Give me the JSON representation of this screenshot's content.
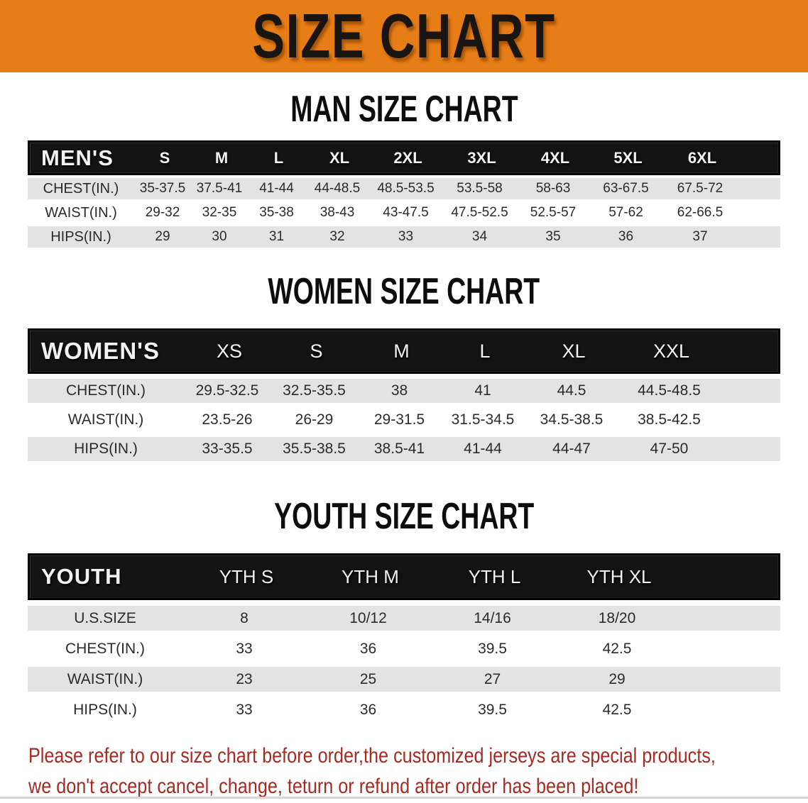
{
  "banner": {
    "title": "SIZE CHART"
  },
  "colors": {
    "banner_bg": "#e67d16",
    "header_bar_bg": "#131313",
    "header_bar_text": "#f2f2f2",
    "row_alt_bg": "#e3e3e3",
    "row_bg": "#ffffff",
    "value_text": "#2b2b2b",
    "footer_text": "#a62a22"
  },
  "men": {
    "heading": "MAN SIZE CHART",
    "label": "MEN'S",
    "sizes": [
      "S",
      "M",
      "L",
      "XL",
      "2XL",
      "3XL",
      "4XL",
      "5XL",
      "6XL"
    ],
    "rows": [
      {
        "label": "CHEST(IN.)",
        "values": [
          "35-37.5",
          "37.5-41",
          "41-44",
          "44-48.5",
          "48.5-53.5",
          "53.5-58",
          "58-63",
          "63-67.5",
          "67.5-72"
        ]
      },
      {
        "label": "WAIST(IN.)",
        "values": [
          "29-32",
          "32-35",
          "35-38",
          "38-43",
          "43-47.5",
          "47.5-52.5",
          "52.5-57",
          "57-62",
          "62-66.5"
        ]
      },
      {
        "label": "HIPS(IN.)",
        "values": [
          "29",
          "30",
          "31",
          "32",
          "33",
          "34",
          "35",
          "36",
          "37"
        ]
      }
    ]
  },
  "women": {
    "heading": "WOMEN SIZE CHART",
    "label": "WOMEN'S",
    "sizes": [
      "XS",
      "S",
      "M",
      "L",
      "XL",
      "XXL"
    ],
    "rows": [
      {
        "label": "CHEST(IN.)",
        "values": [
          "29.5-32.5",
          "32.5-35.5",
          "38",
          "41",
          "44.5",
          "44.5-48.5"
        ]
      },
      {
        "label": "WAIST(IN.)",
        "values": [
          "23.5-26",
          "26-29",
          "29-31.5",
          "31.5-34.5",
          "34.5-38.5",
          "38.5-42.5"
        ]
      },
      {
        "label": "HIPS(IN.)",
        "values": [
          "33-35.5",
          "35.5-38.5",
          "38.5-41",
          "41-44",
          "44-47",
          "47-50"
        ]
      }
    ]
  },
  "youth": {
    "heading": "YOUTH SIZE CHART",
    "label": "YOUTH",
    "sizes": [
      "YTH S",
      "YTH M",
      "YTH L",
      "YTH XL"
    ],
    "rows": [
      {
        "label": "U.S.SIZE",
        "values": [
          "8",
          "10/12",
          "14/16",
          "18/20"
        ]
      },
      {
        "label": "CHEST(IN.)",
        "values": [
          "33",
          "36",
          "39.5",
          "42.5"
        ]
      },
      {
        "label": "WAIST(IN.)",
        "values": [
          "23",
          "25",
          "27",
          "29"
        ]
      },
      {
        "label": "HIPS(IN.)",
        "values": [
          "33",
          "36",
          "39.5",
          "42.5"
        ]
      }
    ]
  },
  "footer": {
    "line1": "Please refer to our size chart before order,the customized jerseys are special products,",
    "line2": "we don't accept cancel, change, teturn or refund after order has been placed!"
  }
}
